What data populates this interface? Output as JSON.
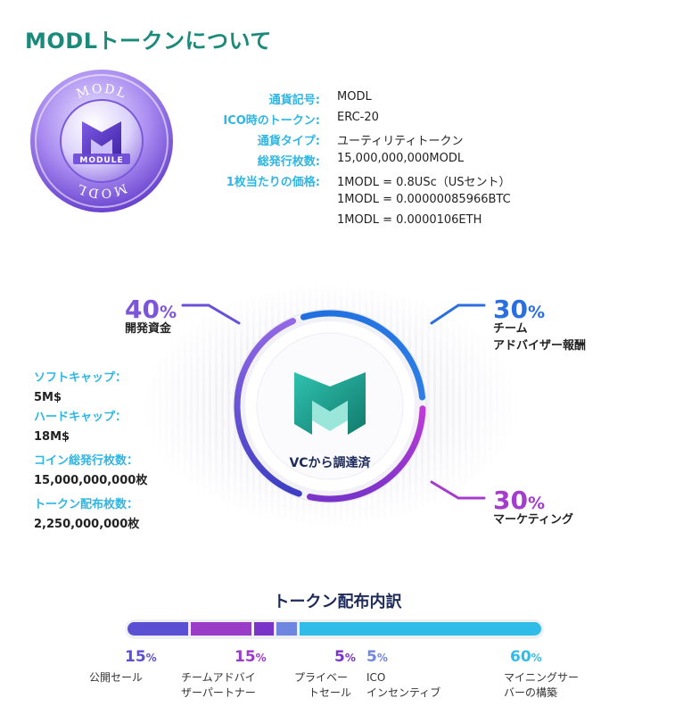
{
  "title": "MODLトークンについて",
  "coin": {
    "top_text": "MODL",
    "bottom_text": "MODL",
    "brand_text": "MODULE"
  },
  "info": [
    {
      "label": "通貨記号:",
      "value": "MODL"
    },
    {
      "label": "ICO時のトークン:",
      "value": "ERC-20"
    },
    {
      "label": "通貨タイプ:",
      "value": "ユーティリティトークン"
    },
    {
      "label": "総発行枚数:",
      "value": "15,000,000,000MODL"
    },
    {
      "label": "1枚当たりの価格:",
      "value": "1MODL = 0.8USc（USセント）"
    },
    {
      "label": "",
      "value": "1MODL = 0.00000085966BTC"
    },
    {
      "label": "",
      "value": "1MODL = 0.0000106ETH"
    }
  ],
  "donut": {
    "center_label": "VCから調達済",
    "segments": [
      {
        "percent": "40",
        "sign": "%",
        "label_lines": [
          "開発資金"
        ],
        "color": "#7d55d9"
      },
      {
        "percent": "30",
        "sign": "%",
        "label_lines": [
          "チーム",
          "アドバイザー報酬"
        ],
        "color": "#2a7fe0"
      },
      {
        "percent": "30",
        "sign": "%",
        "label_lines": [
          "マーケティング"
        ],
        "color": "#9b3cc9"
      }
    ]
  },
  "stats": [
    {
      "label": "ソフトキャップ：",
      "value": "5M$"
    },
    {
      "label": "ハードキャップ：",
      "value": "18M$"
    },
    {
      "label": "コイン総発行枚数：",
      "value": "15,000,000,000枚"
    },
    {
      "label": "トークン配布枚数：",
      "value": "2,250,000,000枚"
    }
  ],
  "distribution": {
    "title": "トークン配布内訳",
    "items": [
      {
        "percent": "15",
        "sign": "%",
        "label_lines": [
          "公開セール"
        ],
        "color": "#5b4fd4",
        "share": 15
      },
      {
        "percent": "15",
        "sign": "%",
        "label_lines": [
          "チームアドバイ",
          "ザーパートナー"
        ],
        "color": "#9b3cc9",
        "share": 15
      },
      {
        "percent": "5",
        "sign": "%",
        "label_lines": [
          "プライベー",
          "トセール"
        ],
        "color": "#7a35c8",
        "share": 5
      },
      {
        "percent": "5",
        "sign": "%",
        "label_lines": [
          "ICO",
          "インセンティブ"
        ],
        "color": "#6f86e0",
        "share": 5
      },
      {
        "percent": "60",
        "sign": "%",
        "label_lines": [
          "マイニングサー",
          "バーの構築"
        ],
        "color": "#2fbde8",
        "share": 60
      }
    ]
  }
}
